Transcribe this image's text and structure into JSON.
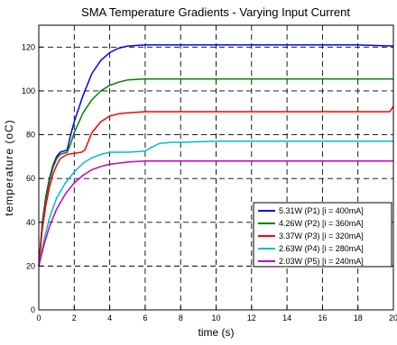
{
  "chart_data": {
    "type": "line",
    "title": "SMA Temperature Gradients - Varying Input Current",
    "xlabel": "time (s)",
    "ylabel": "temperature (oC)",
    "xlim": [
      0,
      20
    ],
    "ylim": [
      0,
      130
    ],
    "xticks": [
      0,
      2,
      4,
      6,
      8,
      10,
      12,
      14,
      16,
      18,
      20
    ],
    "yticks": [
      0,
      20,
      40,
      60,
      80,
      100,
      120
    ],
    "grid": true,
    "legend_position": "lower-right",
    "series": [
      {
        "name": "5.31W (P1) [i = 400mA]",
        "color": "#0000ff",
        "points": [
          [
            0,
            20
          ],
          [
            0.2,
            40
          ],
          [
            0.4,
            52
          ],
          [
            0.6,
            60
          ],
          [
            0.8,
            66
          ],
          [
            1.0,
            70
          ],
          [
            1.2,
            72
          ],
          [
            1.4,
            72.5
          ],
          [
            1.6,
            73
          ],
          [
            1.8,
            80
          ],
          [
            2.0,
            86
          ],
          [
            2.5,
            98
          ],
          [
            3.0,
            108
          ],
          [
            3.5,
            114
          ],
          [
            4.0,
            117.5
          ],
          [
            4.5,
            119.5
          ],
          [
            5.0,
            120.5
          ],
          [
            6.0,
            121
          ],
          [
            8,
            121
          ],
          [
            10,
            121
          ],
          [
            12,
            121
          ],
          [
            14,
            121
          ],
          [
            16,
            121
          ],
          [
            18,
            121
          ],
          [
            20,
            120.5
          ]
        ]
      },
      {
        "name": "4.26W (P2) [i = 360mA]",
        "color": "#008000",
        "points": [
          [
            0,
            20
          ],
          [
            0.2,
            39
          ],
          [
            0.4,
            51
          ],
          [
            0.6,
            59
          ],
          [
            0.8,
            65
          ],
          [
            1.0,
            69
          ],
          [
            1.2,
            71
          ],
          [
            1.4,
            71.5
          ],
          [
            1.6,
            72
          ],
          [
            1.8,
            76
          ],
          [
            2.0,
            81
          ],
          [
            2.5,
            90
          ],
          [
            3.0,
            96
          ],
          [
            3.5,
            100
          ],
          [
            4.0,
            102.5
          ],
          [
            4.5,
            104
          ],
          [
            5.0,
            105
          ],
          [
            6.0,
            105.5
          ],
          [
            8,
            105.5
          ],
          [
            10,
            105.5
          ],
          [
            12,
            105.5
          ],
          [
            14,
            105.5
          ],
          [
            16,
            105.5
          ],
          [
            18,
            105.5
          ],
          [
            20,
            105.5
          ]
        ]
      },
      {
        "name": "3.37W (P3) [i = 320mA]",
        "color": "#ff0000",
        "points": [
          [
            0,
            20
          ],
          [
            0.2,
            37
          ],
          [
            0.4,
            48
          ],
          [
            0.6,
            56
          ],
          [
            0.8,
            62
          ],
          [
            1.0,
            66
          ],
          [
            1.2,
            69
          ],
          [
            1.4,
            70
          ],
          [
            1.6,
            71
          ],
          [
            2.0,
            71.5
          ],
          [
            2.4,
            72
          ],
          [
            2.6,
            73
          ],
          [
            2.8,
            77
          ],
          [
            3.0,
            81
          ],
          [
            3.5,
            86
          ],
          [
            4.0,
            88.5
          ],
          [
            4.5,
            89.5
          ],
          [
            5.0,
            90
          ],
          [
            6,
            90.5
          ],
          [
            8,
            90.5
          ],
          [
            10,
            90.5
          ],
          [
            12,
            90.5
          ],
          [
            14,
            90.5
          ],
          [
            16,
            90.5
          ],
          [
            18,
            90.5
          ],
          [
            19.8,
            90.5
          ],
          [
            20,
            93
          ]
        ]
      },
      {
        "name": "2.63W (P4) [i = 280mA]",
        "color": "#00bfbf",
        "points": [
          [
            0,
            20
          ],
          [
            0.3,
            32
          ],
          [
            0.6,
            42
          ],
          [
            1.0,
            51
          ],
          [
            1.5,
            58
          ],
          [
            2.0,
            63
          ],
          [
            2.5,
            67
          ],
          [
            3.0,
            69.5
          ],
          [
            3.5,
            71
          ],
          [
            4.0,
            72
          ],
          [
            5.0,
            72
          ],
          [
            6.0,
            72.5
          ],
          [
            6.3,
            74
          ],
          [
            6.8,
            76
          ],
          [
            7.5,
            76.5
          ],
          [
            8,
            76.5
          ],
          [
            10,
            77
          ],
          [
            12,
            77
          ],
          [
            14,
            77
          ],
          [
            16,
            77
          ],
          [
            18,
            77
          ],
          [
            20,
            77
          ]
        ]
      },
      {
        "name": "2.03W (P5) [i = 240mA]",
        "color": "#bf00bf",
        "points": [
          [
            0,
            20
          ],
          [
            0.3,
            30
          ],
          [
            0.6,
            38
          ],
          [
            1.0,
            46
          ],
          [
            1.5,
            53
          ],
          [
            2.0,
            58
          ],
          [
            2.5,
            61.5
          ],
          [
            3.0,
            64
          ],
          [
            3.5,
            65.5
          ],
          [
            4.0,
            66.5
          ],
          [
            5.0,
            67.5
          ],
          [
            6.0,
            68
          ],
          [
            8,
            68
          ],
          [
            10,
            68
          ],
          [
            12,
            68
          ],
          [
            14,
            68
          ],
          [
            16,
            68
          ],
          [
            18,
            68
          ],
          [
            20,
            68
          ]
        ]
      }
    ]
  }
}
